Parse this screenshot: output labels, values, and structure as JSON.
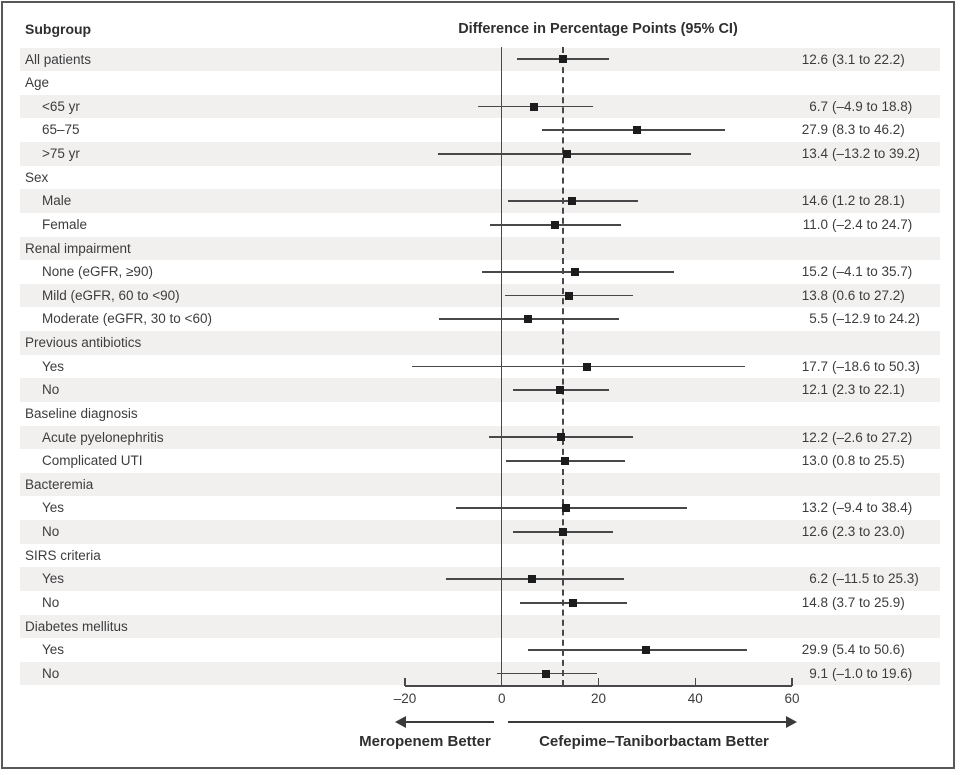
{
  "figure": {
    "col_header": "Subgroup",
    "title": "Difference in Percentage Points (95% CI)"
  },
  "chart_data": {
    "type": "forest",
    "title": "Difference in Percentage Points (95% CI)",
    "x_axis": {
      "ticks": [
        -20,
        0,
        20,
        40,
        60
      ],
      "tick_labels": [
        "–20",
        "0",
        "20",
        "40",
        "60"
      ],
      "range": [
        -20,
        60
      ],
      "zero_line": 0,
      "overall_dashed_line": 12.6,
      "grid": false
    },
    "direction_labels": {
      "left": "Meropenem Better",
      "right": "Cefepime–Taniborbactam Better"
    },
    "rows": [
      {
        "label": "All patients",
        "indent": 0,
        "est": "12.6",
        "lo": 3.1,
        "hi": 22.2,
        "ci": "(3.1 to 22.2)"
      },
      {
        "label": "Age",
        "indent": 0,
        "header": true
      },
      {
        "label": "<65 yr",
        "indent": 1,
        "est": "6.7",
        "lo": -4.9,
        "hi": 18.8,
        "ci": "(–4.9 to 18.8)"
      },
      {
        "label": "65–75",
        "indent": 1,
        "est": "27.9",
        "lo": 8.3,
        "hi": 46.2,
        "ci": "(8.3 to 46.2)"
      },
      {
        "label": ">75 yr",
        "indent": 1,
        "est": "13.4",
        "lo": -13.2,
        "hi": 39.2,
        "ci": "(–13.2 to 39.2)"
      },
      {
        "label": "Sex",
        "indent": 0,
        "header": true
      },
      {
        "label": "Male",
        "indent": 1,
        "est": "14.6",
        "lo": 1.2,
        "hi": 28.1,
        "ci": "(1.2 to 28.1)"
      },
      {
        "label": "Female",
        "indent": 1,
        "est": "11.0",
        "lo": -2.4,
        "hi": 24.7,
        "ci": "(–2.4 to 24.7)"
      },
      {
        "label": "Renal impairment",
        "indent": 0,
        "header": true
      },
      {
        "label": "None (eGFR, ≥90)",
        "indent": 1,
        "est": "15.2",
        "lo": -4.1,
        "hi": 35.7,
        "ci": "(–4.1 to 35.7)"
      },
      {
        "label": "Mild (eGFR, 60 to <90)",
        "indent": 1,
        "est": "13.8",
        "lo": 0.6,
        "hi": 27.2,
        "ci": "(0.6 to 27.2)"
      },
      {
        "label": "Moderate (eGFR, 30 to <60)",
        "indent": 1,
        "est": "5.5",
        "lo": -12.9,
        "hi": 24.2,
        "ci": "(–12.9 to 24.2)"
      },
      {
        "label": "Previous antibiotics",
        "indent": 0,
        "header": true
      },
      {
        "label": "Yes",
        "indent": 1,
        "est": "17.7",
        "lo": -18.6,
        "hi": 50.3,
        "ci": "(–18.6 to 50.3)"
      },
      {
        "label": "No",
        "indent": 1,
        "est": "12.1",
        "lo": 2.3,
        "hi": 22.1,
        "ci": "(2.3 to 22.1)"
      },
      {
        "label": "Baseline diagnosis",
        "indent": 0,
        "header": true
      },
      {
        "label": "Acute pyelonephritis",
        "indent": 1,
        "est": "12.2",
        "lo": -2.6,
        "hi": 27.2,
        "ci": "(–2.6 to 27.2)"
      },
      {
        "label": "Complicated UTI",
        "indent": 1,
        "est": "13.0",
        "lo": 0.8,
        "hi": 25.5,
        "ci": "(0.8 to 25.5)"
      },
      {
        "label": "Bacteremia",
        "indent": 0,
        "header": true
      },
      {
        "label": "Yes",
        "indent": 1,
        "est": "13.2",
        "lo": -9.4,
        "hi": 38.4,
        "ci": "(–9.4 to 38.4)"
      },
      {
        "label": "No",
        "indent": 1,
        "est": "12.6",
        "lo": 2.3,
        "hi": 23.0,
        "ci": "(2.3 to 23.0)"
      },
      {
        "label": "SIRS criteria",
        "indent": 0,
        "header": true
      },
      {
        "label": "Yes",
        "indent": 1,
        "est": "6.2",
        "lo": -11.5,
        "hi": 25.3,
        "ci": "(–11.5 to 25.3)"
      },
      {
        "label": "No",
        "indent": 1,
        "est": "14.8",
        "lo": 3.7,
        "hi": 25.9,
        "ci": "(3.7 to 25.9)"
      },
      {
        "label": "Diabetes mellitus",
        "indent": 0,
        "header": true
      },
      {
        "label": "Yes",
        "indent": 1,
        "est": "29.9",
        "lo": 5.4,
        "hi": 50.6,
        "ci": "(5.4 to 50.6)"
      },
      {
        "label": "No",
        "indent": 1,
        "est": "9.1",
        "lo": -1.0,
        "hi": 19.6,
        "ci": "(–1.0 to 19.6)"
      }
    ],
    "colors": {
      "band": "#f1f0ee",
      "line": "#48484a",
      "marker": "#1c1c1c",
      "text": "#3c3c3e",
      "frame": "#58585a"
    }
  }
}
